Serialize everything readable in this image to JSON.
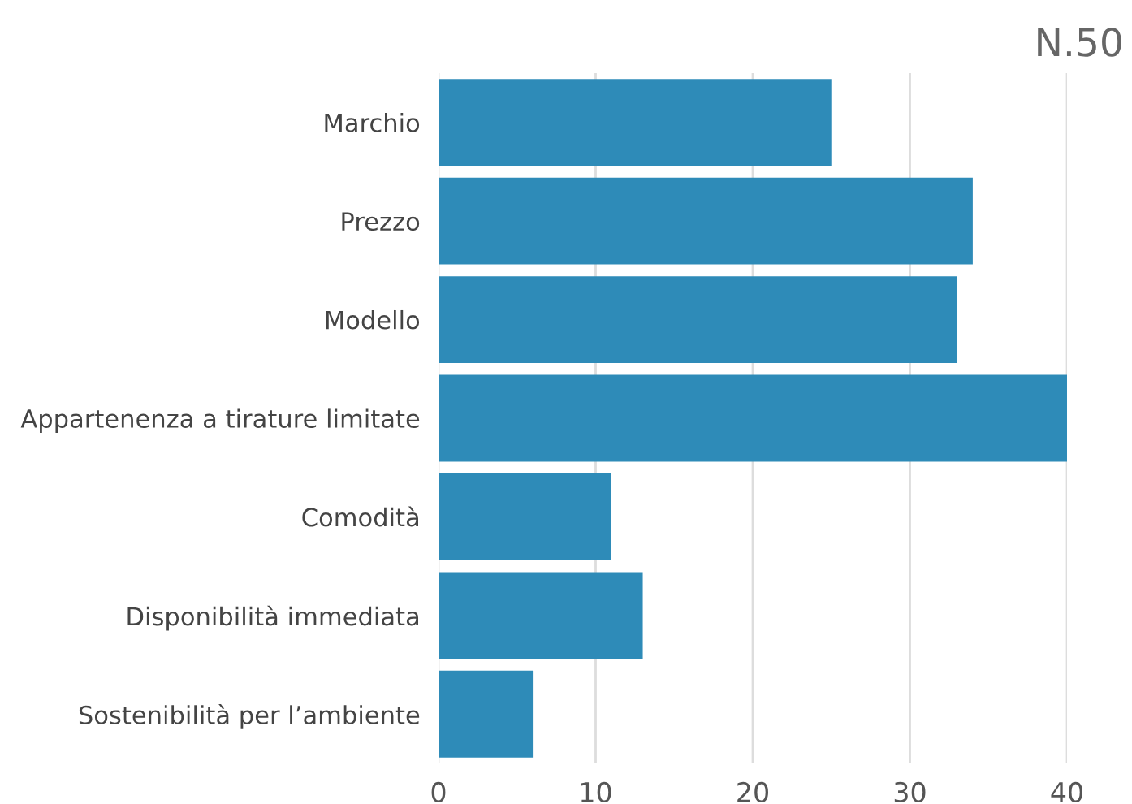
{
  "chart_data": {
    "type": "bar",
    "orientation": "horizontal",
    "title": "N.50",
    "categories": [
      "Marchio",
      "Prezzo",
      "Modello",
      "Appartenenza a tirature limitate",
      "Comodità",
      "Disponibilità immediata",
      "Sostenibilità per l’ambiente"
    ],
    "values": [
      25,
      34,
      33,
      40,
      11,
      13,
      6
    ],
    "color": "#2e8bb8",
    "xlim": [
      0,
      40
    ],
    "xticks": [
      0,
      10,
      20,
      30,
      40
    ],
    "grid": "x",
    "legend": false
  }
}
